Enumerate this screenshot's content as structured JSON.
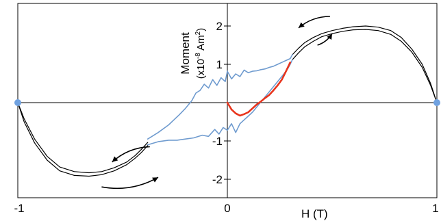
{
  "chart_data": {
    "type": "line",
    "title": "",
    "xlabel": "H (T)",
    "ylabel": "Moment",
    "ylabel_unit_prefix": "(x10",
    "ylabel_unit_exponent": "-8",
    "ylabel_unit_suffix": " Am",
    "ylabel_unit_power": "2",
    "ylabel_unit_close": ")",
    "xlim": [
      -1,
      1
    ],
    "ylim": [
      -2.55,
      2.55
    ],
    "grid": false,
    "x_tick_labels": [
      {
        "value": -1,
        "label": "-1"
      },
      {
        "value": 0,
        "label": "0"
      },
      {
        "value": 1,
        "label": "1"
      }
    ],
    "y_tick_labels": [
      {
        "value": 2,
        "label": "2"
      },
      {
        "value": 1,
        "label": "1"
      },
      {
        "value": -1,
        "label": "-1"
      },
      {
        "value": -2,
        "label": "-2"
      }
    ],
    "colors": {
      "loop": "#000000",
      "noisy": "#6f9bcf",
      "virgin": "#e8341c",
      "endpoint": "#6fa1e0",
      "arrow": "#000000"
    },
    "series": [
      {
        "id": "upper-outer",
        "x": [
          1.0,
          0.97,
          0.93,
          0.88,
          0.83,
          0.78,
          0.72,
          0.66,
          0.6,
          0.55,
          0.5,
          0.45,
          0.41,
          0.37,
          0.34,
          0.31
        ],
        "y": [
          0.0,
          0.5,
          1.0,
          1.4,
          1.7,
          1.88,
          1.97,
          2.0,
          1.98,
          1.94,
          1.88,
          1.8,
          1.7,
          1.57,
          1.42,
          1.25
        ]
      },
      {
        "id": "upper-inner",
        "x": [
          1.0,
          0.97,
          0.93,
          0.88,
          0.83,
          0.78,
          0.72,
          0.66,
          0.6,
          0.55,
          0.5,
          0.45,
          0.41,
          0.37,
          0.34,
          0.31
        ],
        "y": [
          0.0,
          0.45,
          0.92,
          1.32,
          1.6,
          1.78,
          1.88,
          1.91,
          1.9,
          1.86,
          1.8,
          1.72,
          1.6,
          1.46,
          1.3,
          1.12
        ]
      },
      {
        "id": "lower-outer",
        "x": [
          -1.0,
          -0.97,
          -0.92,
          -0.86,
          -0.8,
          -0.73,
          -0.66,
          -0.6,
          -0.54,
          -0.48,
          -0.44,
          -0.41,
          -0.38
        ],
        "y": [
          0.0,
          -0.5,
          -1.05,
          -1.5,
          -1.78,
          -1.9,
          -1.92,
          -1.88,
          -1.78,
          -1.62,
          -1.45,
          -1.3,
          -1.12
        ]
      },
      {
        "id": "lower-inner",
        "x": [
          -1.0,
          -0.97,
          -0.92,
          -0.86,
          -0.8,
          -0.73,
          -0.66,
          -0.6,
          -0.54,
          -0.48,
          -0.44,
          -0.41,
          -0.38
        ],
        "y": [
          0.0,
          -0.42,
          -0.95,
          -1.4,
          -1.68,
          -1.8,
          -1.83,
          -1.8,
          -1.7,
          -1.55,
          -1.38,
          -1.22,
          -1.04
        ]
      },
      {
        "id": "noisy-upper",
        "x": [
          -0.38,
          -0.33,
          -0.28,
          -0.23,
          -0.2,
          -0.17,
          -0.15,
          -0.13,
          -0.11,
          -0.09,
          -0.07,
          -0.05,
          -0.03,
          -0.01,
          0.0,
          0.02,
          0.04,
          0.06,
          0.08,
          0.1,
          0.12,
          0.14,
          0.16,
          0.18,
          0.2,
          0.22,
          0.24,
          0.26,
          0.28,
          0.3,
          0.31
        ],
        "y": [
          -0.95,
          -0.78,
          -0.58,
          -0.32,
          -0.15,
          0.05,
          0.25,
          0.32,
          0.48,
          0.38,
          0.6,
          0.45,
          0.65,
          0.55,
          0.82,
          0.62,
          0.75,
          0.68,
          0.85,
          0.78,
          0.82,
          0.83,
          0.86,
          0.88,
          0.92,
          0.95,
          1.0,
          1.05,
          1.1,
          1.15,
          1.25
        ]
      },
      {
        "id": "noisy-lower",
        "x": [
          -0.38,
          -0.33,
          -0.28,
          -0.24,
          -0.2,
          -0.16,
          -0.12,
          -0.09,
          -0.06,
          -0.04,
          -0.02,
          0.0,
          0.02,
          0.04,
          0.06,
          0.08,
          0.1,
          0.12,
          0.15,
          0.18,
          0.21,
          0.24,
          0.27,
          0.29,
          0.3,
          0.31
        ],
        "y": [
          -1.1,
          -1.02,
          -0.98,
          -0.98,
          -0.95,
          -0.92,
          -0.85,
          -0.88,
          -0.7,
          -0.82,
          -0.65,
          -0.72,
          -0.55,
          -0.78,
          -0.55,
          -0.45,
          -0.35,
          -0.25,
          -0.05,
          0.15,
          0.35,
          0.55,
          0.75,
          0.9,
          1.0,
          1.12
        ]
      },
      {
        "id": "virgin-curve",
        "x": [
          0.0,
          0.02,
          0.04,
          0.06,
          0.08,
          0.1,
          0.12,
          0.14,
          0.16,
          0.18,
          0.2,
          0.22,
          0.24,
          0.26,
          0.28,
          0.3
        ],
        "y": [
          0.0,
          -0.18,
          -0.28,
          -0.34,
          -0.3,
          -0.25,
          -0.15,
          -0.05,
          0.03,
          0.12,
          0.2,
          0.32,
          0.45,
          0.6,
          0.82,
          1.05
        ]
      }
    ],
    "endpoints": [
      {
        "x": -1,
        "y": 0
      },
      {
        "x": 1,
        "y": 0
      }
    ],
    "arrows": [
      {
        "from": [
          0.49,
          2.25
        ],
        "to": [
          0.34,
          1.95
        ]
      },
      {
        "from": [
          0.43,
          1.5
        ],
        "to": [
          0.5,
          1.8
        ]
      },
      {
        "from": [
          -0.37,
          -1.15
        ],
        "to": [
          -0.55,
          -1.55
        ]
      },
      {
        "from": [
          -0.6,
          -2.2
        ],
        "to": [
          -0.33,
          -1.95
        ]
      }
    ]
  }
}
